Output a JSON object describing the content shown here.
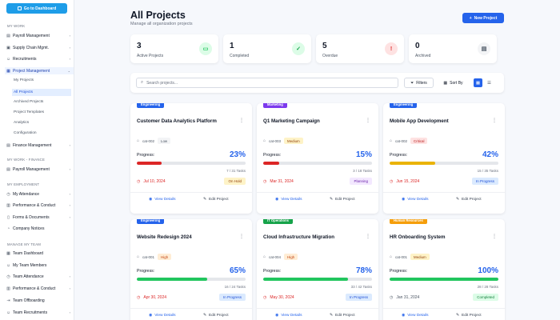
{
  "sidebar": {
    "dashboard_button": "Go to Dashboard",
    "sections": {
      "my_work": "MY WORK",
      "finance": "MY WORK - FINANCE",
      "employment": "MY EMPLOYMENT",
      "manage_team": "MANAGE MY TEAM"
    },
    "my_work_items": [
      "Payroll Management",
      "Supply Chain Mgmt.",
      "Recruitments",
      "Project Management"
    ],
    "project_sub_items": [
      "My Projects",
      "All Projects",
      "Archived Projects",
      "Project Templates",
      "Analytics",
      "Configuration"
    ],
    "finance_mgmt": "Finance Management",
    "finance_items": [
      "Payroll Management"
    ],
    "employment_items": [
      "My Attendance",
      "Performance & Conduct",
      "Forms & Documents",
      "Company Notices"
    ],
    "team_items": [
      "Team Dashboard",
      "My Team Members",
      "Team Attendance",
      "Performance & Conduct",
      "Team Offboarding",
      "Team Recruitments"
    ]
  },
  "header": {
    "title": "All Projects",
    "subtitle": "Manage all organization projects",
    "new_project": "New Project"
  },
  "stats": [
    {
      "value": "3",
      "label": "Active Projects",
      "icon": "folder-icon",
      "color": "#22c55e",
      "bg": "#dcfce7"
    },
    {
      "value": "1",
      "label": "Completed",
      "icon": "check-circle-icon",
      "color": "#16a34a",
      "bg": "#dcfce7"
    },
    {
      "value": "5",
      "label": "Overdue",
      "icon": "alert-circle-icon",
      "color": "#dc2626",
      "bg": "#fee2e2"
    },
    {
      "value": "0",
      "label": "Archived",
      "icon": "archive-icon",
      "color": "#4b5563",
      "bg": "#f3f4f6"
    }
  ],
  "toolbar": {
    "search_placeholder": "Search projects...",
    "filters": "Filters",
    "sort": "Sort By"
  },
  "card_actions": {
    "view": "View Details",
    "edit": "Edit Project"
  },
  "projects": [
    {
      "category": "Engineering",
      "cat_color": "#2563eb",
      "title": "Customer Data Analytics Platform",
      "cat_id": "cat-002",
      "priority": "Low",
      "pri_bg": "#f3f4f6",
      "pri_fg": "#4b5563",
      "progress_label": "Progress:",
      "percent": "23%",
      "progress": 23,
      "bar_color": "#dc2626",
      "pct_color": "#2563eb",
      "tasks": "7 / 31 Tasks",
      "date": "Jul 10, 2024",
      "date_overdue": true,
      "status": "On Hold",
      "st_bg": "#fef3c7",
      "st_fg": "#92400e"
    },
    {
      "category": "Marketing",
      "cat_color": "#7c3aed",
      "title": "Q1 Marketing Campaign",
      "cat_id": "cat-003",
      "priority": "Medium",
      "pri_bg": "#fef3c7",
      "pri_fg": "#92400e",
      "progress_label": "Progress:",
      "percent": "15%",
      "progress": 15,
      "bar_color": "#dc2626",
      "pct_color": "#2563eb",
      "tasks": "3 / 18 Tasks",
      "date": "Mar 31, 2024",
      "date_overdue": true,
      "status": "Planning",
      "st_bg": "#f3e8ff",
      "st_fg": "#6b21a8"
    },
    {
      "category": "Engineering",
      "cat_color": "#2563eb",
      "title": "Mobile App Development",
      "cat_id": "cat-002",
      "priority": "Critical",
      "pri_bg": "#fee2e2",
      "pri_fg": "#b91c1c",
      "progress_label": "Progress:",
      "percent": "42%",
      "progress": 42,
      "bar_color": "#eab308",
      "pct_color": "#2563eb",
      "tasks": "15 / 35 Tasks",
      "date": "Jun 15, 2024",
      "date_overdue": true,
      "status": "In Progress",
      "st_bg": "#dbeafe",
      "st_fg": "#1d4ed8"
    },
    {
      "category": "Engineering",
      "cat_color": "#2563eb",
      "title": "Website Redesign 2024",
      "cat_id": "cat-001",
      "priority": "High",
      "pri_bg": "#ffedd5",
      "pri_fg": "#c2410c",
      "progress_label": "Progress:",
      "percent": "65%",
      "progress": 65,
      "bar_color": "#22c55e",
      "pct_color": "#2563eb",
      "tasks": "16 / 24 Tasks",
      "date": "Apr 30, 2024",
      "date_overdue": true,
      "status": "In Progress",
      "st_bg": "#dbeafe",
      "st_fg": "#1d4ed8"
    },
    {
      "category": "IT Operations",
      "cat_color": "#16a34a",
      "title": "Cloud Infrastructure Migration",
      "cat_id": "cat-004",
      "priority": "High",
      "pri_bg": "#ffedd5",
      "pri_fg": "#c2410c",
      "progress_label": "Progress:",
      "percent": "78%",
      "progress": 78,
      "bar_color": "#22c55e",
      "pct_color": "#2563eb",
      "tasks": "33 / 42 Tasks",
      "date": "May 30, 2024",
      "date_overdue": true,
      "status": "In Progress",
      "st_bg": "#dbeafe",
      "st_fg": "#1d4ed8"
    },
    {
      "category": "Human Resources",
      "cat_color": "#f59e0b",
      "title": "HR Onboarding System",
      "cat_id": "cat-001",
      "priority": "Medium",
      "pri_bg": "#fef3c7",
      "pri_fg": "#92400e",
      "progress_label": "Progress:",
      "percent": "100%",
      "progress": 100,
      "bar_color": "#22c55e",
      "pct_color": "#2563eb",
      "tasks": "28 / 28 Tasks",
      "date": "Jan 31, 2024",
      "date_overdue": false,
      "status": "Completed",
      "st_bg": "#dcfce7",
      "st_fg": "#15803d"
    }
  ]
}
